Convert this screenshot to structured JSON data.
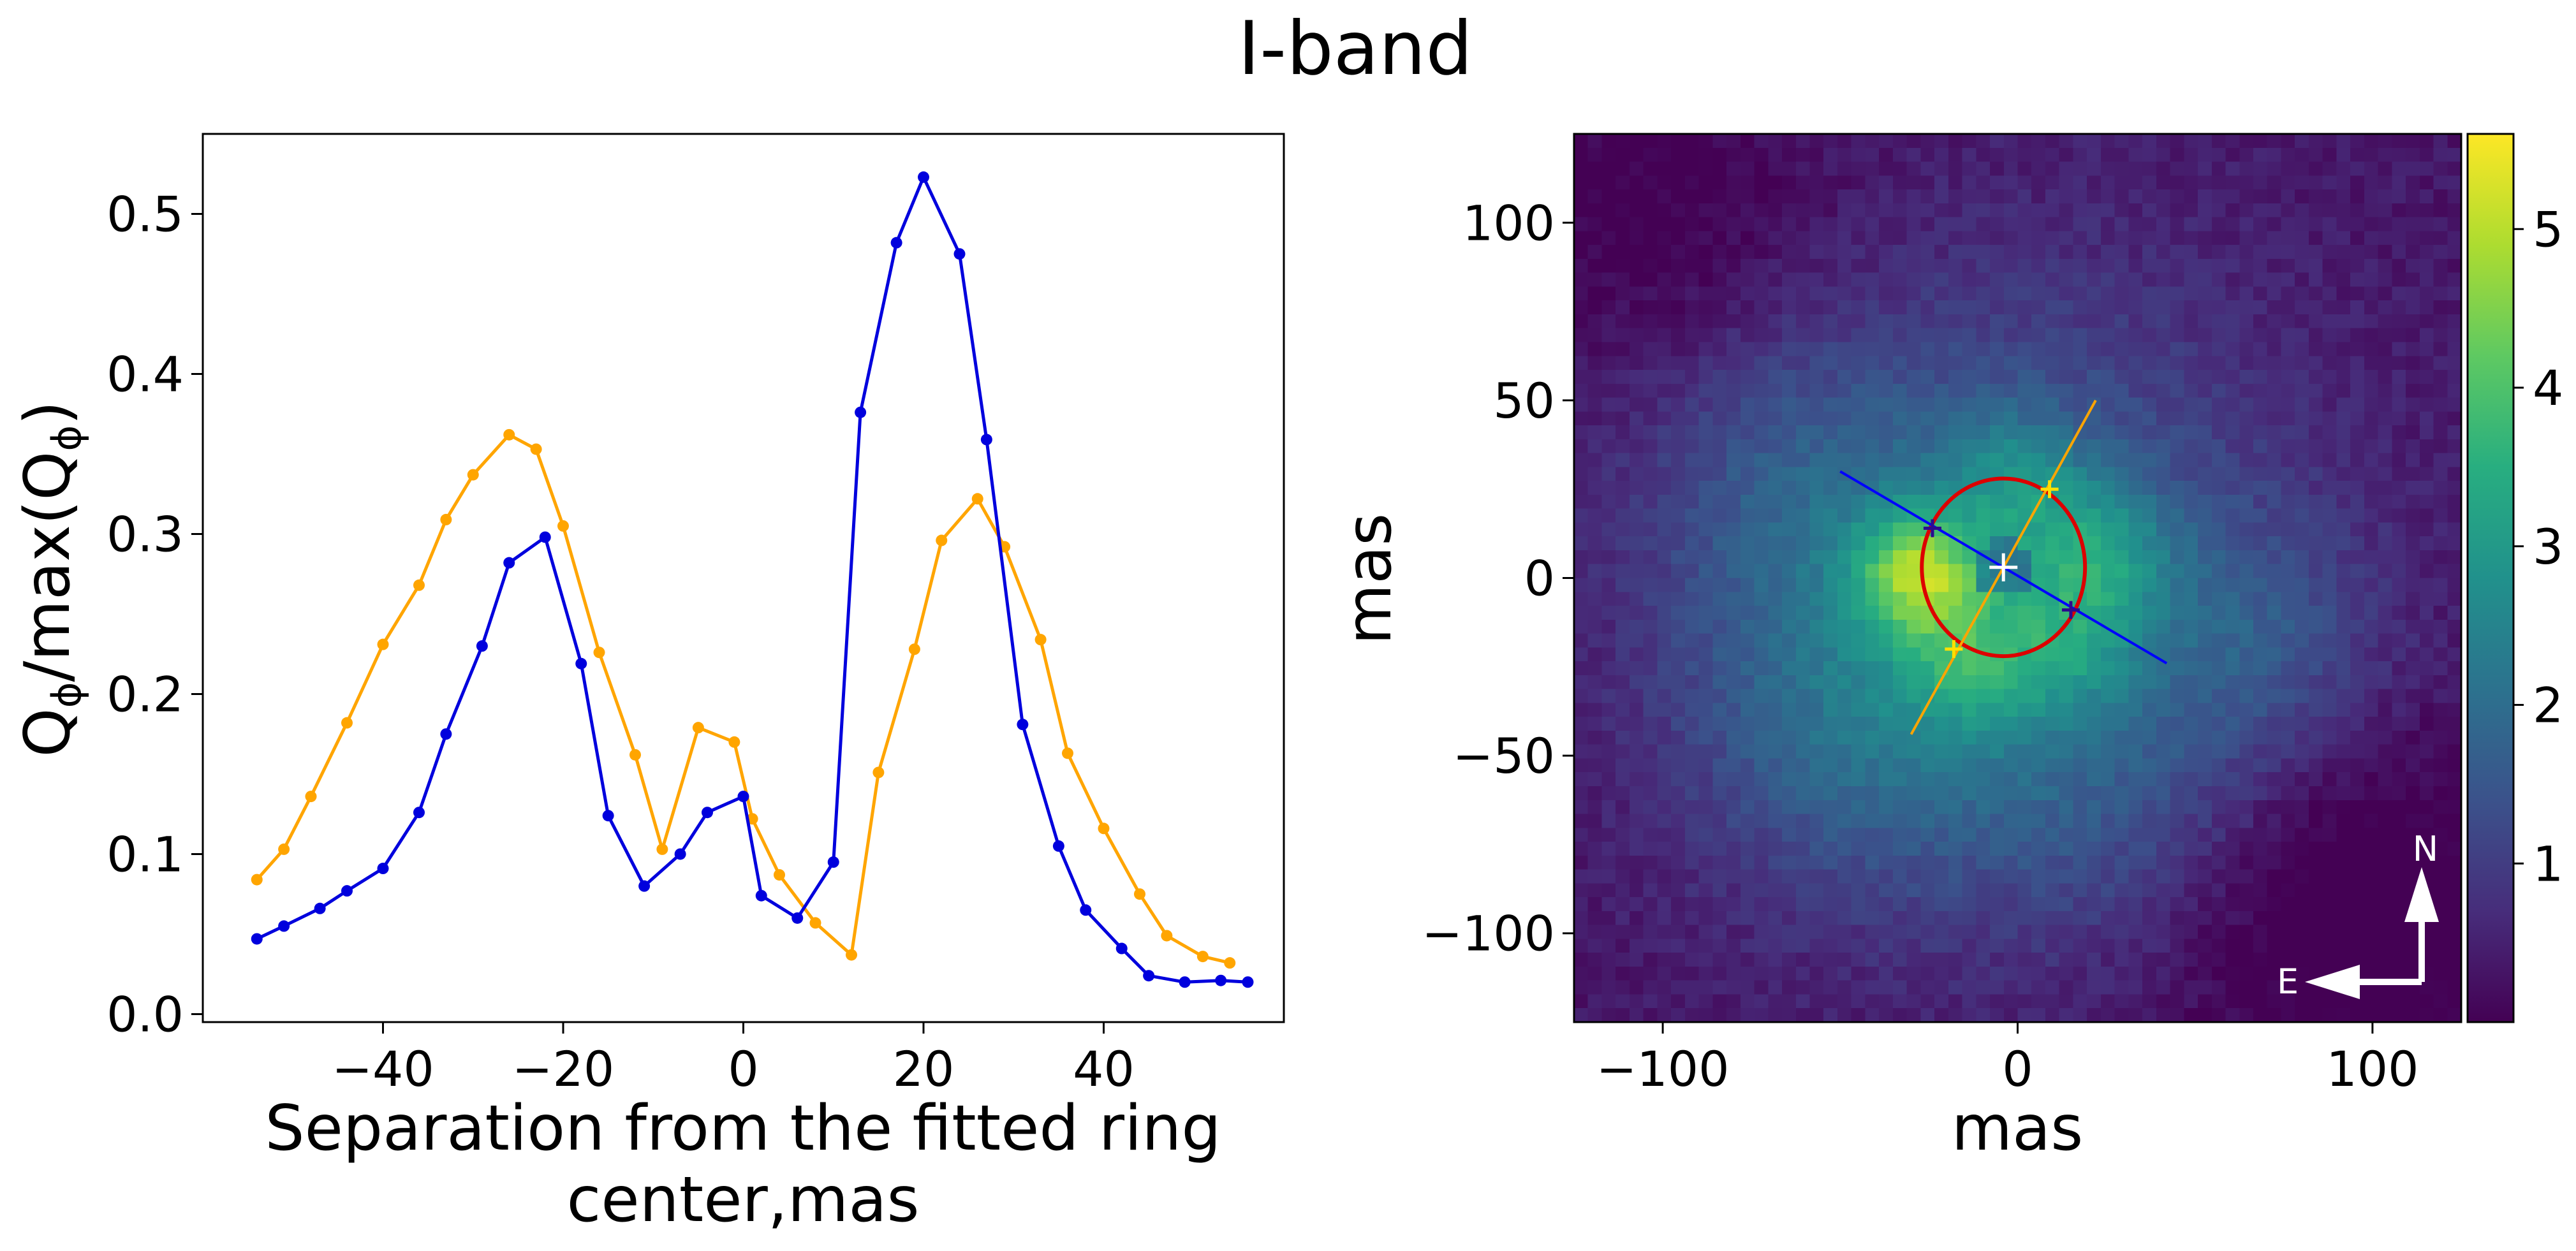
{
  "figure": {
    "title": "I-band"
  },
  "chart_data": [
    {
      "type": "line",
      "xlabel_lines": [
        "Separation from the fitted ring",
        "center,mas"
      ],
      "ylabel": "Q_phi/max(Q_phi)",
      "ylabel_parts": {
        "q": "Q",
        "sub": "ϕ",
        "mid": "/max(Q",
        "sub2": "ϕ",
        "end": ")"
      },
      "xlim": [
        -60,
        60
      ],
      "ylim": [
        -0.005,
        0.55
      ],
      "xticks": [
        -40,
        -20,
        0,
        20,
        40
      ],
      "xtick_labels": [
        "−40",
        "−20",
        "0",
        "20",
        "40"
      ],
      "yticks": [
        0.0,
        0.1,
        0.2,
        0.3,
        0.4,
        0.5
      ],
      "ytick_labels": [
        "0.0",
        "0.1",
        "0.2",
        "0.3",
        "0.4",
        "0.5"
      ],
      "grid": false,
      "series": [
        {
          "name": "profile-orange",
          "color": "#ffa500",
          "x": [
            -54,
            -51,
            -48,
            -44,
            -40,
            -36,
            -33,
            -30,
            -26,
            -23,
            -20,
            -16,
            -12,
            -9,
            -5,
            -1,
            1,
            4,
            8,
            12,
            15,
            19,
            22,
            26,
            29,
            33,
            36,
            40,
            44,
            47,
            51,
            54
          ],
          "y": [
            0.084,
            0.103,
            0.136,
            0.182,
            0.231,
            0.268,
            0.309,
            0.337,
            0.362,
            0.353,
            0.305,
            0.226,
            0.162,
            0.103,
            0.179,
            0.17,
            0.122,
            0.087,
            0.057,
            0.037,
            0.151,
            0.228,
            0.296,
            0.322,
            0.292,
            0.234,
            0.163,
            0.116,
            0.075,
            0.049,
            0.036,
            0.032
          ]
        },
        {
          "name": "profile-blue",
          "color": "#0000dd",
          "x": [
            -54,
            -51,
            -47,
            -44,
            -40,
            -36,
            -33,
            -29,
            -26,
            -22,
            -18,
            -15,
            -11,
            -7,
            -4,
            0,
            2,
            6,
            10,
            13,
            17,
            20,
            24,
            27,
            31,
            35,
            38,
            42,
            45,
            49,
            53,
            56
          ],
          "y": [
            0.047,
            0.055,
            0.066,
            0.077,
            0.091,
            0.126,
            0.175,
            0.23,
            0.282,
            0.298,
            0.219,
            0.124,
            0.08,
            0.1,
            0.126,
            0.136,
            0.074,
            0.06,
            0.095,
            0.376,
            0.482,
            0.523,
            0.475,
            0.359,
            0.181,
            0.105,
            0.065,
            0.041,
            0.024,
            0.02,
            0.021,
            0.02
          ]
        }
      ]
    },
    {
      "type": "heatmap",
      "xlabel": "mas",
      "ylabel": "mas",
      "xlim": [
        -125,
        125
      ],
      "ylim": [
        -125,
        125
      ],
      "xticks": [
        -100,
        0,
        100
      ],
      "xtick_labels": [
        "−100",
        "0",
        "100"
      ],
      "yticks": [
        100,
        50,
        0,
        -50,
        -100
      ],
      "ytick_labels": [
        "100",
        "50",
        "0",
        "−50",
        "−100"
      ],
      "colormap": "viridis",
      "color_range": [
        0,
        5.6
      ],
      "colorbar_ticks": [
        1,
        2,
        3,
        4,
        5
      ],
      "colorbar_labels": [
        "1",
        "2",
        "3",
        "4",
        "5"
      ],
      "ring": {
        "center": [
          -4,
          3
        ],
        "semi_major": 25,
        "semi_minor": 23,
        "color": "#dd0000"
      },
      "blue_line": {
        "from": [
          -50,
          30
        ],
        "to": [
          42,
          -24
        ],
        "color": "#0000ff",
        "markers": [
          [
            -24,
            14
          ],
          [
            15,
            -9
          ]
        ]
      },
      "orange_line": {
        "from": [
          -30,
          -44
        ],
        "to": [
          22,
          50
        ],
        "color": "#ffa500",
        "markers": [
          [
            -18,
            -20
          ],
          [
            9,
            25
          ]
        ]
      },
      "center_marker": [
        -4,
        3
      ],
      "compass": {
        "north": "N",
        "east": "E"
      }
    }
  ]
}
